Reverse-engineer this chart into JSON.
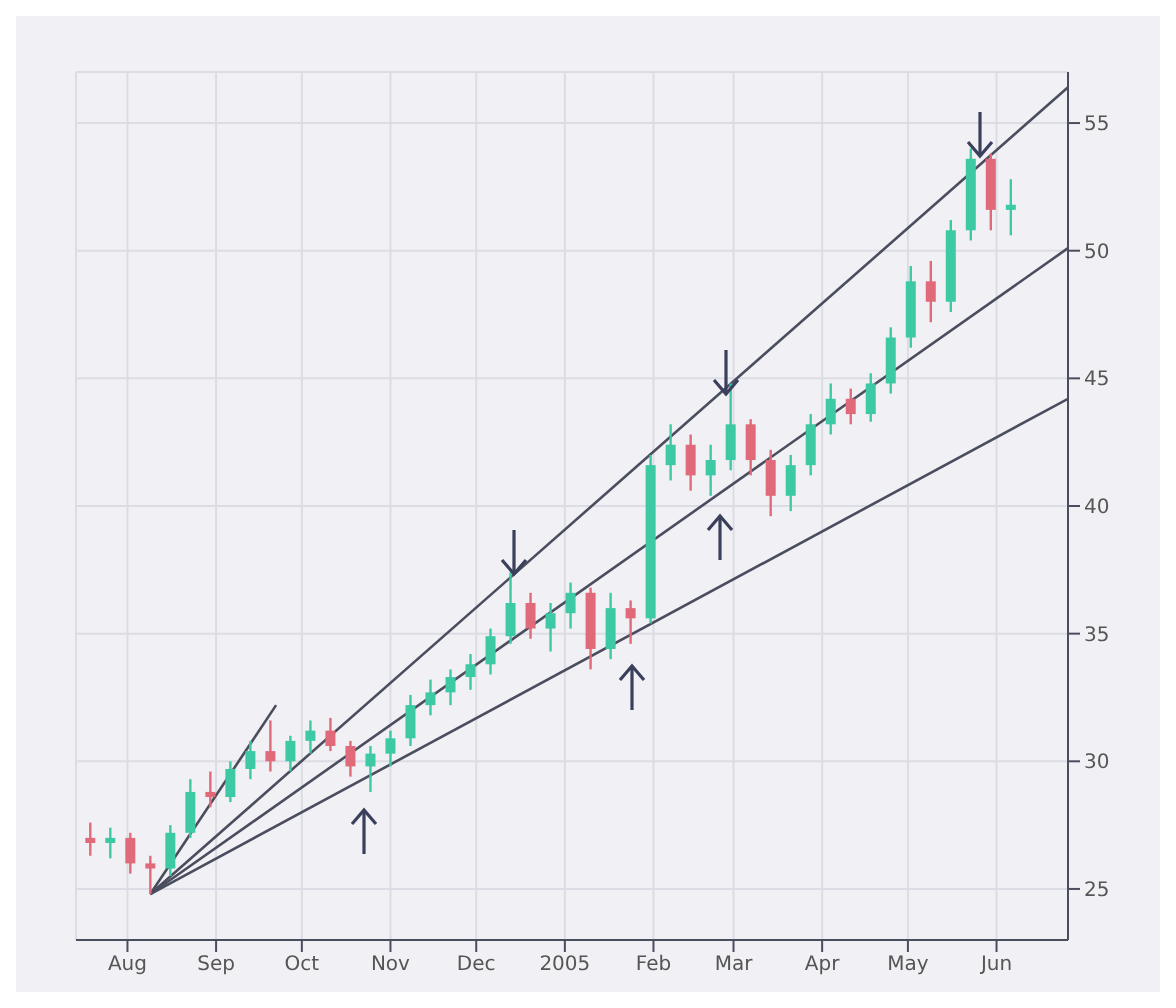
{
  "chart_data": {
    "type": "candlestick",
    "x": [
      "2004-07-19",
      "2004-07-26",
      "2004-08-02",
      "2004-08-09",
      "2004-08-16",
      "2004-08-23",
      "2004-08-30",
      "2004-09-06",
      "2004-09-13",
      "2004-09-20",
      "2004-09-27",
      "2004-10-04",
      "2004-10-11",
      "2004-10-18",
      "2004-10-25",
      "2004-11-01",
      "2004-11-08",
      "2004-11-15",
      "2004-11-22",
      "2004-11-29",
      "2004-12-06",
      "2004-12-13",
      "2004-12-20",
      "2004-12-27",
      "2005-01-03",
      "2005-01-10",
      "2005-01-17",
      "2005-01-24",
      "2005-01-31",
      "2005-02-07",
      "2005-02-14",
      "2005-02-21",
      "2005-02-28",
      "2005-03-07",
      "2005-03-14",
      "2005-03-21",
      "2005-03-28",
      "2005-04-04",
      "2005-04-11",
      "2005-04-18",
      "2005-04-25",
      "2005-05-02",
      "2005-05-09",
      "2005-05-16",
      "2005-05-23",
      "2005-05-30",
      "2005-06-06"
    ],
    "ohlc": [
      [
        27,
        27.6,
        26.3,
        26.8
      ],
      [
        26.8,
        27.4,
        26.2,
        27
      ],
      [
        27,
        27.2,
        25.6,
        26
      ],
      [
        26,
        26.3,
        24.8,
        25.8
      ],
      [
        25.8,
        27.5,
        25.5,
        27.2
      ],
      [
        27.2,
        29.3,
        27,
        28.8
      ],
      [
        28.8,
        29.6,
        28.2,
        28.6
      ],
      [
        28.6,
        30,
        28.4,
        29.7
      ],
      [
        29.7,
        30.8,
        29.3,
        30.4
      ],
      [
        30.4,
        31.6,
        29.6,
        30
      ],
      [
        30,
        31,
        29.6,
        30.8
      ],
      [
        30.8,
        31.6,
        30.3,
        31.2
      ],
      [
        31.2,
        31.7,
        30.4,
        30.6
      ],
      [
        30.6,
        30.8,
        29.4,
        29.8
      ],
      [
        29.8,
        30.6,
        28.8,
        30.3
      ],
      [
        30.3,
        31.2,
        29.8,
        30.9
      ],
      [
        30.9,
        32.6,
        30.6,
        32.2
      ],
      [
        32.2,
        33.2,
        31.8,
        32.7
      ],
      [
        32.7,
        33.6,
        32.2,
        33.3
      ],
      [
        33.3,
        34.2,
        32.8,
        33.8
      ],
      [
        33.8,
        35.2,
        33.4,
        34.9
      ],
      [
        34.9,
        37.4,
        34.6,
        36.2
      ],
      [
        36.2,
        36.6,
        34.8,
        35.2
      ],
      [
        35.2,
        36.2,
        34.3,
        35.8
      ],
      [
        35.8,
        37,
        35.2,
        36.6
      ],
      [
        36.6,
        36.8,
        33.6,
        34.4
      ],
      [
        34.4,
        36.6,
        34,
        36
      ],
      [
        36,
        36.3,
        34.6,
        35.6
      ],
      [
        35.6,
        42,
        35.4,
        41.6
      ],
      [
        41.6,
        43.2,
        41,
        42.4
      ],
      [
        42.4,
        42.8,
        40.6,
        41.2
      ],
      [
        41.2,
        42.4,
        40.4,
        41.8
      ],
      [
        41.8,
        44.8,
        41.4,
        43.2
      ],
      [
        43.2,
        43.4,
        41.2,
        41.8
      ],
      [
        41.8,
        42.2,
        39.6,
        40.4
      ],
      [
        40.4,
        42,
        39.8,
        41.6
      ],
      [
        41.6,
        43.6,
        41.2,
        43.2
      ],
      [
        43.2,
        44.8,
        42.8,
        44.2
      ],
      [
        44.2,
        44.6,
        43.2,
        43.6
      ],
      [
        43.6,
        45.2,
        43.3,
        44.8
      ],
      [
        44.8,
        47,
        44.4,
        46.6
      ],
      [
        46.6,
        49.4,
        46.2,
        48.8
      ],
      [
        48.8,
        49.6,
        47.2,
        48
      ],
      [
        48,
        51.2,
        47.6,
        50.8
      ],
      [
        50.8,
        54,
        50.4,
        53.6
      ],
      [
        53.6,
        53.8,
        50.8,
        51.6
      ],
      [
        51.6,
        52.8,
        50.6,
        51.8
      ]
    ],
    "colors": [
      "#e0697a",
      "#3cc9a4",
      "#e0697a",
      "#e0697a",
      "#3cc9a4",
      "#3cc9a4",
      "#e0697a",
      "#3cc9a4",
      "#3cc9a4",
      "#e0697a",
      "#3cc9a4",
      "#3cc9a4",
      "#e0697a",
      "#e0697a",
      "#3cc9a4",
      "#3cc9a4",
      "#3cc9a4",
      "#3cc9a4",
      "#3cc9a4",
      "#3cc9a4",
      "#3cc9a4",
      "#3cc9a4",
      "#e0697a",
      "#3cc9a4",
      "#3cc9a4",
      "#e0697a",
      "#3cc9a4",
      "#e0697a",
      "#3cc9a4",
      "#3cc9a4",
      "#e0697a",
      "#3cc9a4",
      "#3cc9a4",
      "#e0697a",
      "#e0697a",
      "#3cc9a4",
      "#3cc9a4",
      "#3cc9a4",
      "#e0697a",
      "#3cc9a4",
      "#3cc9a4",
      "#3cc9a4",
      "#e0697a",
      "#3cc9a4",
      "#3cc9a4",
      "#e0697a",
      "#3cc9a4"
    ],
    "series": [
      {
        "type": "line",
        "x": [
          "2004-08-09",
          "2004-09-22"
        ],
        "values": [
          24.8,
          32.2
        ],
        "color": "#4a4d5e"
      },
      {
        "type": "line",
        "x": [
          "2004-08-09",
          "2005-06-26"
        ],
        "values": [
          24.8,
          56.4
        ],
        "color": "#4a4d5e"
      },
      {
        "type": "line",
        "x": [
          "2004-08-09",
          "2005-06-26"
        ],
        "values": [
          24.8,
          50.1
        ],
        "color": "#4a4d5e"
      },
      {
        "type": "line",
        "x": [
          "2004-08-09",
          "2005-06-26"
        ],
        "values": [
          24.8,
          44.2
        ],
        "color": "#4a4d5e"
      }
    ],
    "xlim": [
      "2004-07-14",
      "2005-06-26"
    ],
    "xticks": [
      {
        "value": "2004-08-01",
        "label": "Aug"
      },
      {
        "value": "2004-09-01",
        "label": "Sep"
      },
      {
        "value": "2004-10-01",
        "label": "Oct"
      },
      {
        "value": "2004-11-01",
        "label": "Nov"
      },
      {
        "value": "2004-12-01",
        "label": "Dec"
      },
      {
        "value": "2005-01-01",
        "label": "2005"
      },
      {
        "value": "2005-02-01",
        "label": "Feb"
      },
      {
        "value": "2005-03-01",
        "label": "Mar"
      },
      {
        "value": "2005-04-01",
        "label": "Apr"
      },
      {
        "value": "2005-05-01",
        "label": "May"
      },
      {
        "value": "2005-06-01",
        "label": "Jun"
      }
    ],
    "ylim": [
      23,
      57
    ],
    "yticks": [
      25,
      30,
      35,
      40,
      45,
      50,
      55
    ],
    "grid": true
  }
}
